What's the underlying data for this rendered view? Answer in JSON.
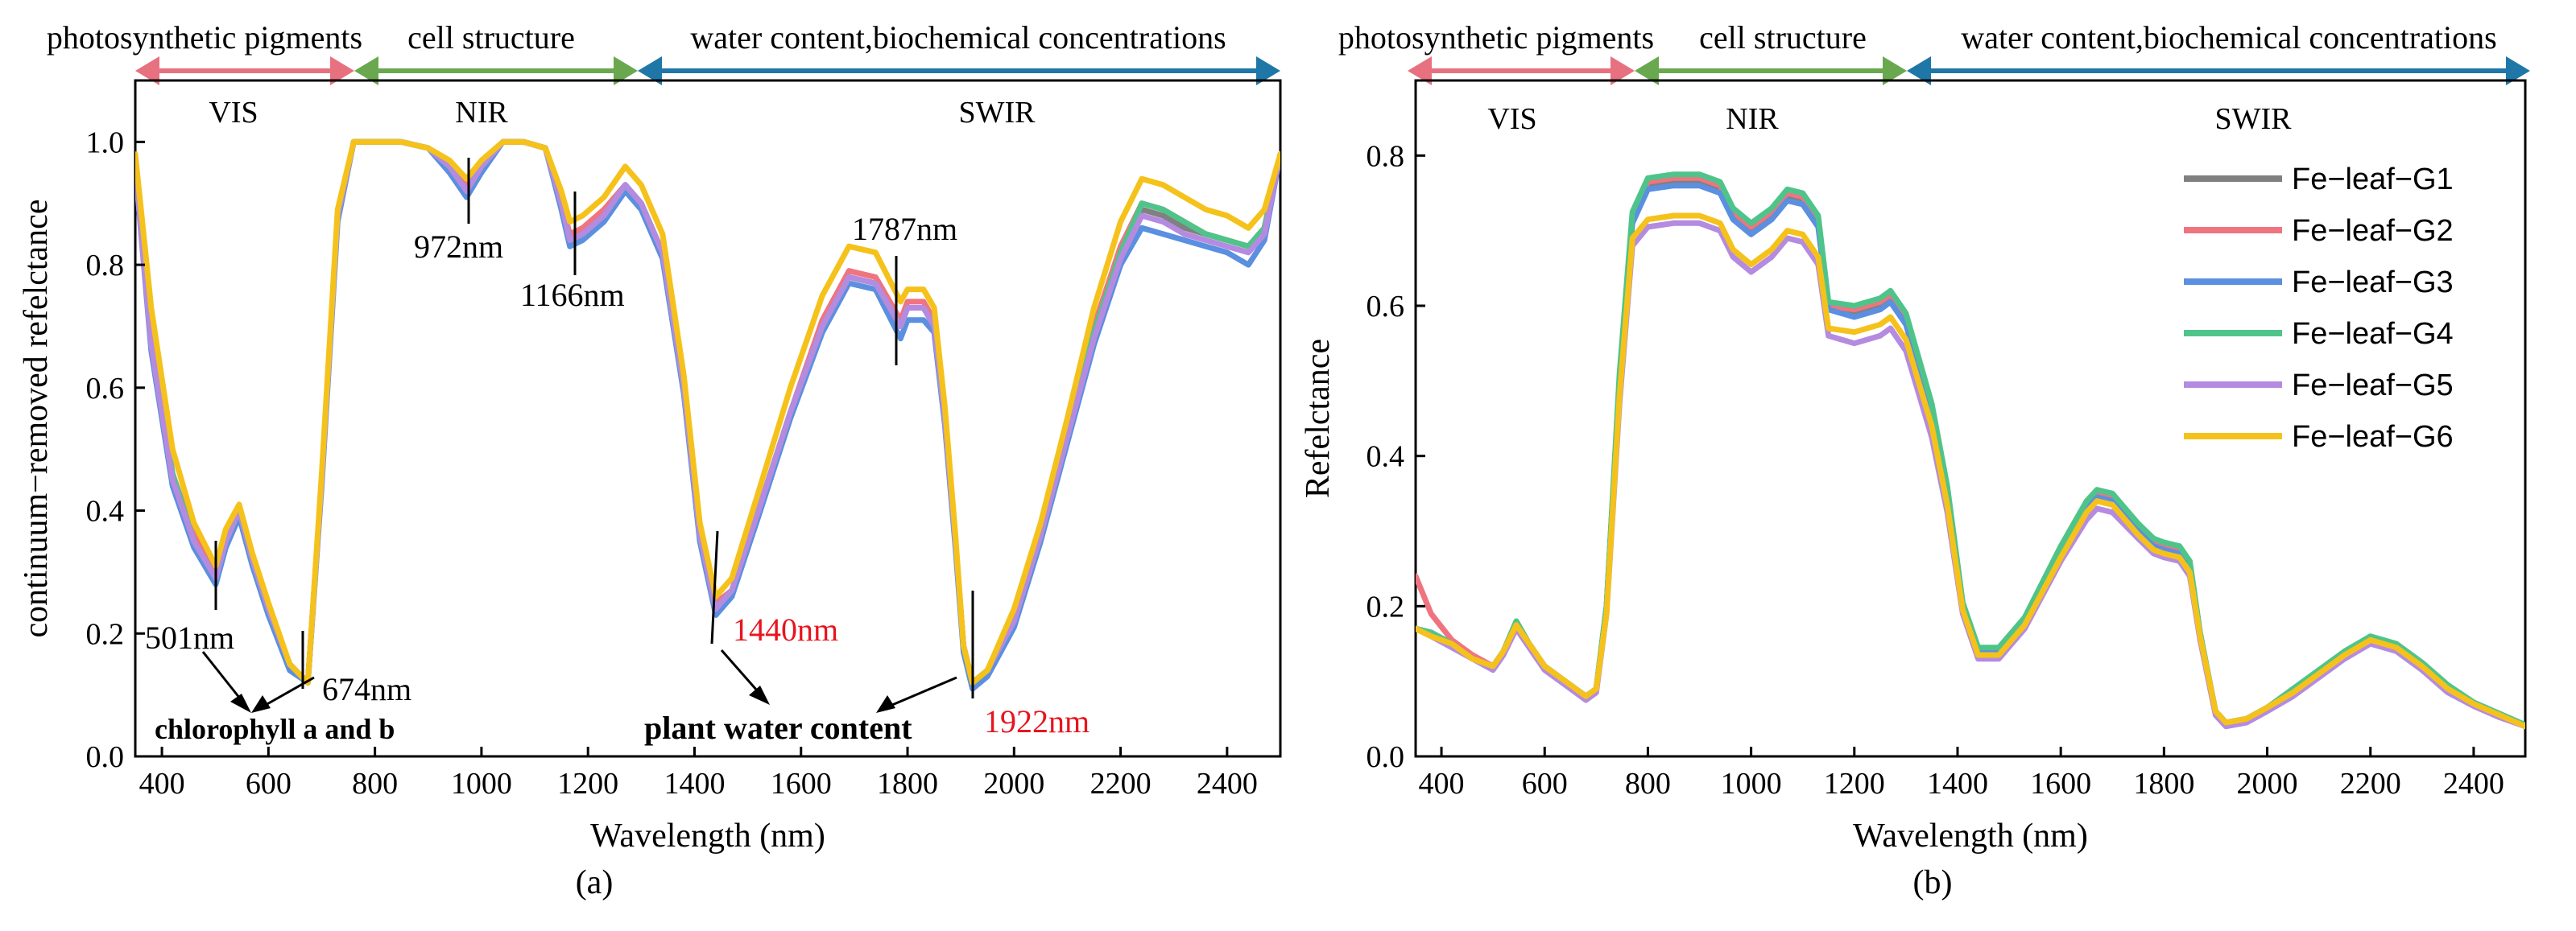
{
  "figure": {
    "categories": {
      "pigments": "photosynthetic pigments",
      "cell": "cell structure",
      "water": "water content,biochemical concentrations"
    },
    "region_labels": {
      "vis": "VIS",
      "nir": "NIR",
      "swir": "SWIR"
    },
    "category_colors": {
      "pigments": "#e8717f",
      "cell": "#6aa84f",
      "water": "#1f77a8"
    }
  },
  "panels": {
    "a": {
      "caption": "(a)",
      "annotations": {
        "a501": "501nm",
        "a674": "674nm",
        "a972": "972nm",
        "a1166": "1166nm",
        "a1787": "1787nm",
        "a1440": "1440nm",
        "a1922": "1922nm",
        "chlorophyll": "chlorophyll a and b",
        "water": "plant water content"
      }
    },
    "b": {
      "caption": "(b)"
    }
  },
  "chart_data": [
    {
      "type": "line",
      "title": "",
      "xlabel": "Wavelength (nm)",
      "ylabel": "continuum−removed refelctance",
      "xlim": [
        350,
        2500
      ],
      "ylim": [
        0.0,
        1.1
      ],
      "xticks": [
        400,
        600,
        800,
        1000,
        1200,
        1400,
        1600,
        1800,
        2000,
        2200,
        2400
      ],
      "yticks": [
        0.0,
        0.2,
        0.4,
        0.6,
        0.8,
        1.0
      ],
      "ytick_labels": [
        "0.0",
        "0.2",
        "0.4",
        "0.6",
        "0.8",
        "1.0"
      ],
      "x": [
        350,
        380,
        420,
        460,
        501,
        520,
        545,
        570,
        600,
        640,
        674,
        700,
        730,
        760,
        800,
        850,
        900,
        940,
        972,
        1000,
        1040,
        1080,
        1120,
        1150,
        1166,
        1190,
        1230,
        1270,
        1300,
        1340,
        1380,
        1410,
        1440,
        1470,
        1520,
        1580,
        1640,
        1690,
        1740,
        1787,
        1800,
        1830,
        1850,
        1870,
        1890,
        1905,
        1922,
        1950,
        2000,
        2050,
        2100,
        2150,
        2200,
        2240,
        2280,
        2320,
        2360,
        2400,
        2440,
        2470,
        2500
      ],
      "series": [
        {
          "name": "Fe−leaf−G1",
          "color": "#808080",
          "values": [
            0.96,
            0.68,
            0.46,
            0.35,
            0.29,
            0.35,
            0.4,
            0.32,
            0.24,
            0.15,
            0.12,
            0.45,
            0.88,
            1.0,
            1.0,
            1.0,
            0.99,
            0.96,
            0.92,
            0.96,
            1.0,
            1.0,
            0.99,
            0.9,
            0.84,
            0.85,
            0.88,
            0.93,
            0.9,
            0.82,
            0.6,
            0.36,
            0.24,
            0.27,
            0.4,
            0.56,
            0.7,
            0.78,
            0.77,
            0.7,
            0.73,
            0.73,
            0.7,
            0.55,
            0.35,
            0.18,
            0.12,
            0.14,
            0.22,
            0.36,
            0.52,
            0.69,
            0.82,
            0.89,
            0.88,
            0.86,
            0.85,
            0.84,
            0.83,
            0.86,
            0.98
          ]
        },
        {
          "name": "Fe−leaf−G2",
          "color": "#f07480",
          "values": [
            0.96,
            0.69,
            0.46,
            0.36,
            0.3,
            0.36,
            0.4,
            0.32,
            0.24,
            0.15,
            0.12,
            0.45,
            0.88,
            1.0,
            1.0,
            1.0,
            0.99,
            0.96,
            0.93,
            0.96,
            1.0,
            1.0,
            0.99,
            0.9,
            0.85,
            0.86,
            0.89,
            0.93,
            0.9,
            0.82,
            0.6,
            0.36,
            0.25,
            0.27,
            0.4,
            0.56,
            0.71,
            0.79,
            0.78,
            0.71,
            0.74,
            0.74,
            0.71,
            0.56,
            0.35,
            0.18,
            0.12,
            0.14,
            0.23,
            0.37,
            0.53,
            0.7,
            0.83,
            0.9,
            0.89,
            0.87,
            0.85,
            0.84,
            0.83,
            0.86,
            0.98
          ]
        },
        {
          "name": "Fe−leaf−G3",
          "color": "#5b8fe0",
          "values": [
            0.96,
            0.66,
            0.44,
            0.34,
            0.28,
            0.34,
            0.39,
            0.31,
            0.23,
            0.14,
            0.12,
            0.44,
            0.87,
            1.0,
            1.0,
            1.0,
            0.99,
            0.95,
            0.91,
            0.95,
            1.0,
            1.0,
            0.99,
            0.89,
            0.83,
            0.84,
            0.87,
            0.92,
            0.89,
            0.81,
            0.59,
            0.35,
            0.23,
            0.26,
            0.39,
            0.55,
            0.69,
            0.77,
            0.76,
            0.68,
            0.71,
            0.71,
            0.69,
            0.54,
            0.34,
            0.17,
            0.11,
            0.13,
            0.21,
            0.35,
            0.51,
            0.67,
            0.8,
            0.86,
            0.85,
            0.84,
            0.83,
            0.82,
            0.8,
            0.84,
            0.98
          ]
        },
        {
          "name": "Fe−leaf−G4",
          "color": "#4fc48a",
          "values": [
            0.96,
            0.68,
            0.46,
            0.35,
            0.29,
            0.35,
            0.4,
            0.32,
            0.24,
            0.15,
            0.12,
            0.45,
            0.88,
            1.0,
            1.0,
            1.0,
            0.99,
            0.96,
            0.92,
            0.96,
            1.0,
            1.0,
            0.99,
            0.9,
            0.84,
            0.85,
            0.88,
            0.93,
            0.9,
            0.82,
            0.6,
            0.36,
            0.24,
            0.27,
            0.4,
            0.56,
            0.7,
            0.78,
            0.77,
            0.7,
            0.73,
            0.73,
            0.7,
            0.55,
            0.35,
            0.18,
            0.12,
            0.14,
            0.22,
            0.36,
            0.52,
            0.69,
            0.82,
            0.9,
            0.89,
            0.87,
            0.85,
            0.84,
            0.83,
            0.86,
            0.98
          ]
        },
        {
          "name": "Fe−leaf−G5",
          "color": "#b48be0",
          "values": [
            0.96,
            0.67,
            0.45,
            0.35,
            0.29,
            0.35,
            0.4,
            0.32,
            0.24,
            0.15,
            0.12,
            0.45,
            0.88,
            1.0,
            1.0,
            1.0,
            0.99,
            0.96,
            0.92,
            0.96,
            1.0,
            1.0,
            0.99,
            0.9,
            0.84,
            0.85,
            0.88,
            0.93,
            0.9,
            0.82,
            0.6,
            0.36,
            0.24,
            0.27,
            0.4,
            0.56,
            0.7,
            0.78,
            0.77,
            0.7,
            0.73,
            0.73,
            0.7,
            0.55,
            0.35,
            0.18,
            0.12,
            0.14,
            0.22,
            0.36,
            0.52,
            0.68,
            0.81,
            0.88,
            0.87,
            0.85,
            0.84,
            0.83,
            0.82,
            0.85,
            0.98
          ]
        },
        {
          "name": "Fe−leaf−G6",
          "color": "#f5c21b",
          "values": [
            0.98,
            0.73,
            0.5,
            0.38,
            0.31,
            0.37,
            0.41,
            0.33,
            0.25,
            0.15,
            0.12,
            0.46,
            0.89,
            1.0,
            1.0,
            1.0,
            0.99,
            0.97,
            0.94,
            0.97,
            1.0,
            1.0,
            0.99,
            0.92,
            0.87,
            0.88,
            0.91,
            0.96,
            0.93,
            0.85,
            0.62,
            0.38,
            0.26,
            0.29,
            0.43,
            0.6,
            0.75,
            0.83,
            0.82,
            0.74,
            0.76,
            0.76,
            0.73,
            0.57,
            0.36,
            0.18,
            0.12,
            0.14,
            0.24,
            0.38,
            0.55,
            0.73,
            0.87,
            0.94,
            0.93,
            0.91,
            0.89,
            0.88,
            0.86,
            0.89,
            0.98
          ]
        }
      ]
    },
    {
      "type": "line",
      "title": "",
      "xlabel": "Wavelength (nm)",
      "ylabel": "Refelctance",
      "xlim": [
        350,
        2500
      ],
      "ylim": [
        0.0,
        0.9
      ],
      "xticks": [
        400,
        600,
        800,
        1000,
        1200,
        1400,
        1600,
        1800,
        2000,
        2200,
        2400
      ],
      "yticks": [
        0.0,
        0.2,
        0.4,
        0.6,
        0.8
      ],
      "ytick_labels": [
        "0.0",
        "0.2",
        "0.4",
        "0.6",
        "0.8"
      ],
      "legend_position": "top-right",
      "x": [
        350,
        380,
        420,
        460,
        500,
        520,
        545,
        570,
        600,
        640,
        680,
        700,
        720,
        745,
        770,
        800,
        850,
        900,
        940,
        965,
        1000,
        1040,
        1070,
        1100,
        1130,
        1150,
        1200,
        1250,
        1270,
        1300,
        1350,
        1380,
        1410,
        1440,
        1480,
        1530,
        1600,
        1650,
        1670,
        1700,
        1750,
        1780,
        1800,
        1830,
        1850,
        1870,
        1900,
        1920,
        1960,
        2000,
        2050,
        2100,
        2150,
        2200,
        2250,
        2300,
        2350,
        2400,
        2450,
        2500
      ],
      "series": [
        {
          "name": "Fe−leaf−G1",
          "color": "#808080",
          "values": [
            0.17,
            0.165,
            0.15,
            0.13,
            0.12,
            0.14,
            0.175,
            0.15,
            0.12,
            0.1,
            0.08,
            0.09,
            0.2,
            0.5,
            0.72,
            0.76,
            0.765,
            0.765,
            0.755,
            0.72,
            0.7,
            0.72,
            0.745,
            0.74,
            0.71,
            0.6,
            0.59,
            0.6,
            0.61,
            0.58,
            0.46,
            0.35,
            0.2,
            0.14,
            0.14,
            0.18,
            0.27,
            0.33,
            0.345,
            0.34,
            0.3,
            0.28,
            0.275,
            0.27,
            0.25,
            0.16,
            0.06,
            0.045,
            0.05,
            0.065,
            0.085,
            0.11,
            0.135,
            0.155,
            0.145,
            0.12,
            0.09,
            0.07,
            0.055,
            0.04
          ]
        },
        {
          "name": "Fe−leaf−G2",
          "color": "#f07480",
          "values": [
            0.24,
            0.19,
            0.155,
            0.135,
            0.12,
            0.14,
            0.18,
            0.15,
            0.12,
            0.1,
            0.08,
            0.09,
            0.2,
            0.5,
            0.72,
            0.765,
            0.77,
            0.77,
            0.76,
            0.725,
            0.705,
            0.725,
            0.75,
            0.745,
            0.715,
            0.6,
            0.595,
            0.605,
            0.615,
            0.585,
            0.465,
            0.355,
            0.2,
            0.14,
            0.14,
            0.18,
            0.275,
            0.335,
            0.35,
            0.345,
            0.305,
            0.285,
            0.28,
            0.275,
            0.255,
            0.16,
            0.06,
            0.045,
            0.05,
            0.065,
            0.085,
            0.11,
            0.135,
            0.155,
            0.145,
            0.12,
            0.09,
            0.07,
            0.055,
            0.04
          ]
        },
        {
          "name": "Fe−leaf−G3",
          "color": "#5b8fe0",
          "values": [
            0.17,
            0.165,
            0.15,
            0.13,
            0.12,
            0.14,
            0.175,
            0.15,
            0.12,
            0.1,
            0.08,
            0.09,
            0.2,
            0.5,
            0.71,
            0.755,
            0.76,
            0.76,
            0.75,
            0.715,
            0.695,
            0.715,
            0.74,
            0.735,
            0.705,
            0.595,
            0.585,
            0.595,
            0.605,
            0.575,
            0.455,
            0.345,
            0.2,
            0.14,
            0.14,
            0.18,
            0.27,
            0.33,
            0.345,
            0.34,
            0.3,
            0.28,
            0.275,
            0.27,
            0.25,
            0.16,
            0.06,
            0.045,
            0.05,
            0.065,
            0.085,
            0.11,
            0.135,
            0.155,
            0.145,
            0.12,
            0.09,
            0.07,
            0.055,
            0.04
          ]
        },
        {
          "name": "Fe−leaf−G4",
          "color": "#4fc48a",
          "values": [
            0.17,
            0.165,
            0.15,
            0.13,
            0.12,
            0.14,
            0.18,
            0.15,
            0.12,
            0.1,
            0.08,
            0.09,
            0.2,
            0.51,
            0.725,
            0.77,
            0.775,
            0.775,
            0.765,
            0.73,
            0.71,
            0.73,
            0.755,
            0.75,
            0.72,
            0.605,
            0.6,
            0.61,
            0.62,
            0.59,
            0.47,
            0.36,
            0.205,
            0.145,
            0.145,
            0.185,
            0.28,
            0.34,
            0.355,
            0.35,
            0.31,
            0.29,
            0.285,
            0.28,
            0.26,
            0.165,
            0.06,
            0.045,
            0.05,
            0.065,
            0.09,
            0.115,
            0.14,
            0.16,
            0.15,
            0.125,
            0.095,
            0.072,
            0.057,
            0.042
          ]
        },
        {
          "name": "Fe−leaf−G5",
          "color": "#b48be0",
          "values": [
            0.17,
            0.16,
            0.145,
            0.13,
            0.115,
            0.135,
            0.17,
            0.145,
            0.115,
            0.095,
            0.075,
            0.085,
            0.19,
            0.47,
            0.68,
            0.705,
            0.71,
            0.71,
            0.7,
            0.665,
            0.645,
            0.665,
            0.69,
            0.685,
            0.655,
            0.56,
            0.55,
            0.56,
            0.57,
            0.54,
            0.425,
            0.325,
            0.19,
            0.13,
            0.13,
            0.17,
            0.26,
            0.315,
            0.33,
            0.325,
            0.29,
            0.27,
            0.265,
            0.26,
            0.24,
            0.155,
            0.055,
            0.04,
            0.045,
            0.06,
            0.08,
            0.105,
            0.13,
            0.15,
            0.14,
            0.115,
            0.085,
            0.067,
            0.052,
            0.04
          ]
        },
        {
          "name": "Fe−leaf−G6",
          "color": "#f5c21b",
          "values": [
            0.17,
            0.16,
            0.15,
            0.13,
            0.12,
            0.14,
            0.175,
            0.15,
            0.12,
            0.1,
            0.08,
            0.09,
            0.19,
            0.48,
            0.69,
            0.715,
            0.72,
            0.72,
            0.71,
            0.675,
            0.655,
            0.675,
            0.7,
            0.695,
            0.665,
            0.57,
            0.565,
            0.575,
            0.585,
            0.555,
            0.44,
            0.335,
            0.195,
            0.135,
            0.135,
            0.175,
            0.265,
            0.325,
            0.34,
            0.335,
            0.295,
            0.275,
            0.27,
            0.265,
            0.245,
            0.16,
            0.06,
            0.045,
            0.05,
            0.065,
            0.085,
            0.11,
            0.135,
            0.155,
            0.145,
            0.12,
            0.09,
            0.07,
            0.055,
            0.04
          ]
        }
      ]
    }
  ]
}
